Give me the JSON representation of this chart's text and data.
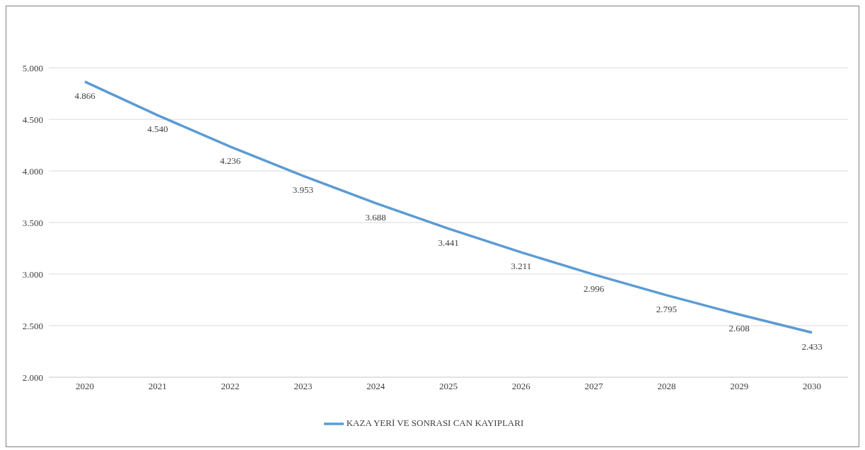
{
  "chart_data": {
    "type": "line",
    "categories": [
      "2020",
      "2021",
      "2022",
      "2023",
      "2024",
      "2025",
      "2026",
      "2027",
      "2028",
      "2029",
      "2030"
    ],
    "series": [
      {
        "name": "KAZA YERİ VE SONRASI CAN KAYIPLARI",
        "color": "#5b9bd5",
        "values": [
          4866,
          4540,
          4236,
          3953,
          3688,
          3441,
          3211,
          2996,
          2795,
          2608,
          2433
        ],
        "value_labels": [
          "4.866",
          "4.540",
          "4.236",
          "3.953",
          "3.688",
          "3.441",
          "3.211",
          "2.996",
          "2.795",
          "2.608",
          "2.433"
        ]
      }
    ],
    "ylim": [
      2000,
      5000
    ],
    "yticks": [
      {
        "value": 2000,
        "label": "2.000"
      },
      {
        "value": 2500,
        "label": "2.500"
      },
      {
        "value": 3000,
        "label": "3.000"
      },
      {
        "value": 3500,
        "label": "3.500"
      },
      {
        "value": 4000,
        "label": "4.000"
      },
      {
        "value": 4500,
        "label": "4.500"
      },
      {
        "value": 5000,
        "label": "5.000"
      }
    ],
    "grid": "y",
    "legend": "bottom",
    "marker": "none",
    "line_style": "solid"
  }
}
